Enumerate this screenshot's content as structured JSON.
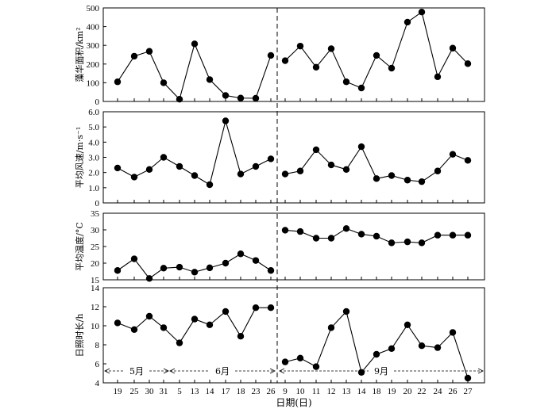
{
  "chart_data": {
    "type": "line",
    "categories": [
      "19",
      "25",
      "30",
      "31",
      "5",
      "13",
      "14",
      "17",
      "18",
      "23",
      "26",
      "9",
      "10",
      "11",
      "12",
      "13",
      "14",
      "18",
      "19",
      "20",
      "22",
      "24",
      "26",
      "27"
    ],
    "xlabel": "日期(日)",
    "months": [
      {
        "label": "5月"
      },
      {
        "label": "6月"
      },
      {
        "label": "9月"
      }
    ],
    "panels": [
      {
        "ylabel": "藻华面积/km²",
        "ylim": [
          0,
          500
        ],
        "yticks": [
          0,
          100,
          200,
          300,
          400,
          500
        ],
        "values": [
          105,
          242,
          268,
          100,
          12,
          308,
          117,
          32,
          18,
          17,
          246,
          218,
          296,
          183,
          282,
          105,
          72,
          246,
          178,
          424,
          478,
          132,
          285,
          202
        ]
      },
      {
        "ylabel": "平均风速/m·s⁻¹",
        "ylim": [
          0,
          6
        ],
        "yticks": [
          "0",
          "1.0",
          "2.0",
          "3.0",
          "4.0",
          "5.0",
          "6.0"
        ],
        "values": [
          2.3,
          1.7,
          2.2,
          3.0,
          2.4,
          1.8,
          1.2,
          5.4,
          1.9,
          2.4,
          2.9,
          1.9,
          2.1,
          3.5,
          2.5,
          2.2,
          3.7,
          1.6,
          1.8,
          1.5,
          1.4,
          2.1,
          3.2,
          2.8
        ]
      },
      {
        "ylabel": "平均温度/°C",
        "ylim": [
          15,
          35
        ],
        "yticks": [
          15,
          20,
          25,
          30,
          35
        ],
        "values": [
          17.8,
          21.3,
          15.4,
          18.5,
          18.8,
          17.3,
          18.6,
          20.0,
          22.8,
          20.8,
          17.8,
          29.9,
          29.5,
          27.5,
          27.5,
          30.4,
          28.7,
          28.1,
          26.1,
          26.4,
          26.1,
          28.4,
          28.4,
          28.4
        ]
      },
      {
        "ylabel": "日照时长/h",
        "ylim": [
          4,
          14
        ],
        "yticks": [
          4,
          6,
          8,
          10,
          12,
          14
        ],
        "values": [
          10.3,
          9.6,
          11.0,
          9.8,
          8.2,
          10.7,
          10.1,
          11.5,
          8.9,
          11.9,
          11.9,
          6.2,
          6.6,
          5.7,
          9.8,
          11.5,
          5.1,
          7.0,
          7.6,
          10.1,
          7.9,
          7.7,
          9.3,
          4.5
        ]
      }
    ],
    "grid": false,
    "marker": "filled-circle",
    "gap_after_index": 10
  }
}
